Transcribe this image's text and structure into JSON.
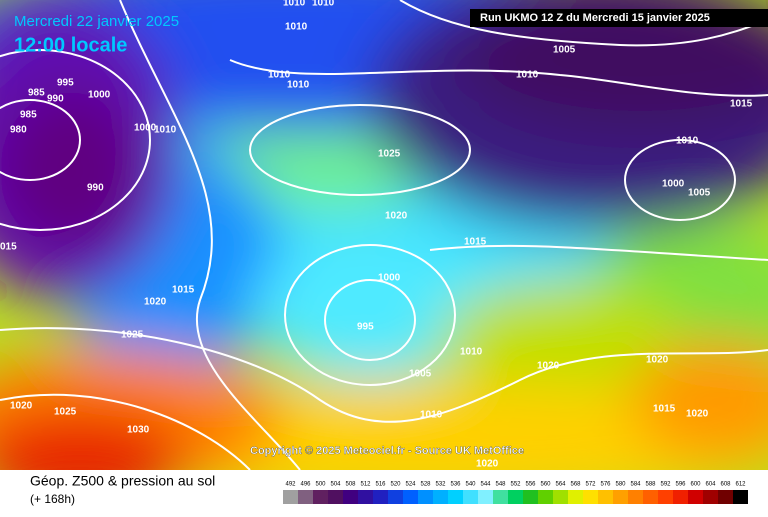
{
  "header": {
    "date": "Mercredi 22 janvier 2025",
    "time": "12:00 locale",
    "run": "Run UKMO 12 Z du Mercredi 15 janvier 2025"
  },
  "map": {
    "isobar_labels": [
      "1010",
      "1010",
      "1010",
      "1005",
      "1010",
      "1010",
      "1010",
      "995",
      "985",
      "990",
      "1000",
      "985",
      "980",
      "1000",
      "1010",
      "1015",
      "1010",
      "1025",
      "990",
      "1000",
      "1005",
      "1020",
      "1015",
      "015",
      "1000",
      "1015",
      "1020",
      "995",
      "1025",
      "1010",
      "1020",
      "1020",
      "1005",
      "1020",
      "1025",
      "1015",
      "1020",
      "1010",
      "1030",
      "1020"
    ]
  },
  "footer": {
    "copyright": "Copyright © 2025 Meteociel.fr - Source UK MetOffice",
    "title": "Géop. Z500 & pression au sol",
    "lead": "(+ 168h)"
  },
  "legend": {
    "values": [
      "492",
      "496",
      "500",
      "504",
      "508",
      "512",
      "516",
      "520",
      "524",
      "528",
      "532",
      "536",
      "540",
      "544",
      "548",
      "552",
      "556",
      "560",
      "564",
      "568",
      "572",
      "576",
      "580",
      "584",
      "588",
      "592",
      "596",
      "600",
      "604",
      "608",
      "612"
    ],
    "colors": [
      "#a0a0a0",
      "#806080",
      "#602060",
      "#501060",
      "#400080",
      "#3010a0",
      "#2020c0",
      "#1040e0",
      "#0060ff",
      "#0090ff",
      "#00b0ff",
      "#00d0ff",
      "#40e0ff",
      "#80f0ff",
      "#40e0a0",
      "#00d060",
      "#20c020",
      "#60d000",
      "#a0e000",
      "#e0f000",
      "#ffe000",
      "#ffc000",
      "#ffa000",
      "#ff8000",
      "#ff6000",
      "#ff4000",
      "#f02000",
      "#d00000",
      "#a00000",
      "#700000",
      "#000000"
    ]
  }
}
